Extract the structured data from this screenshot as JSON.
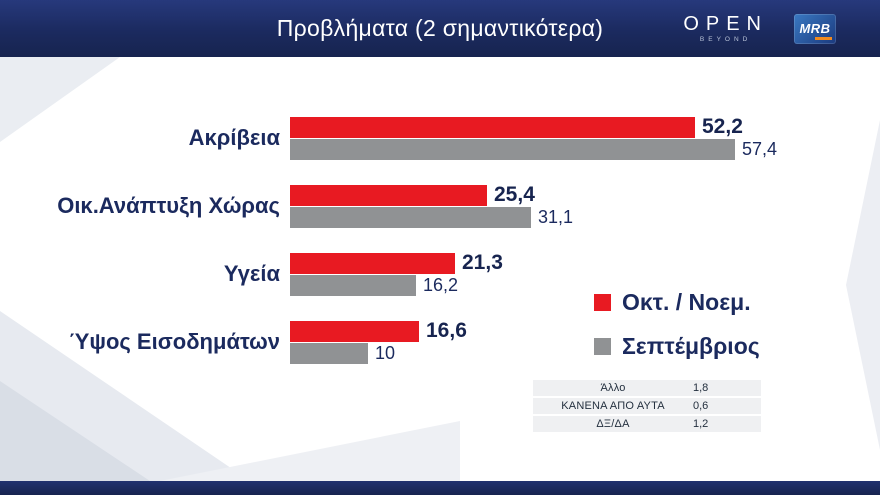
{
  "header": {
    "title": "Προβλήματα (2 σημαντικότερα)",
    "open_logo": {
      "text": "OPEN",
      "subtext": "BEYOND"
    },
    "mrb_logo": "MRB"
  },
  "chart_data": {
    "type": "bar",
    "orientation": "horizontal",
    "title": "Προβλήματα (2 σημαντικότερα)",
    "categories": [
      "Ακρίβεια",
      "Οικ.Ανάπτυξη Χώρας",
      "Υγεία",
      "Ύψος Εισοδημάτων"
    ],
    "series": [
      {
        "name": "Οκτ. / Νοεμ.",
        "color": "#e81a22",
        "values": [
          52.2,
          25.4,
          21.3,
          16.6
        ],
        "value_labels": [
          "52,2",
          "25,4",
          "21,3",
          "16,6"
        ]
      },
      {
        "name": "Σεπτέμβριος",
        "color": "#909294",
        "values": [
          57.4,
          31.1,
          16.2,
          10
        ],
        "value_labels": [
          "57,4",
          "31,1",
          "16,2",
          "10"
        ]
      }
    ],
    "xlim": [
      0,
      60
    ],
    "grid": false,
    "legend_position": "right"
  },
  "legend": {
    "items": [
      {
        "label": "Οκτ. / Νοεμ.",
        "color": "#e81a22"
      },
      {
        "label": "Σεπτέμβριος",
        "color": "#909294"
      }
    ]
  },
  "footnotes": {
    "rows": [
      {
        "label": "Άλλο",
        "value": "1,8"
      },
      {
        "label": "ΚΑΝΕΝΑ ΑΠΟ ΑΥΤΑ",
        "value": "0,6"
      },
      {
        "label": "ΔΞ/ΔΑ",
        "value": "1,2"
      }
    ]
  },
  "colors": {
    "navy": "#1b2b63",
    "text_navy": "#1b2a5e",
    "red": "#e81a22",
    "gray": "#909294",
    "mrb_orange": "#f28a1e"
  }
}
